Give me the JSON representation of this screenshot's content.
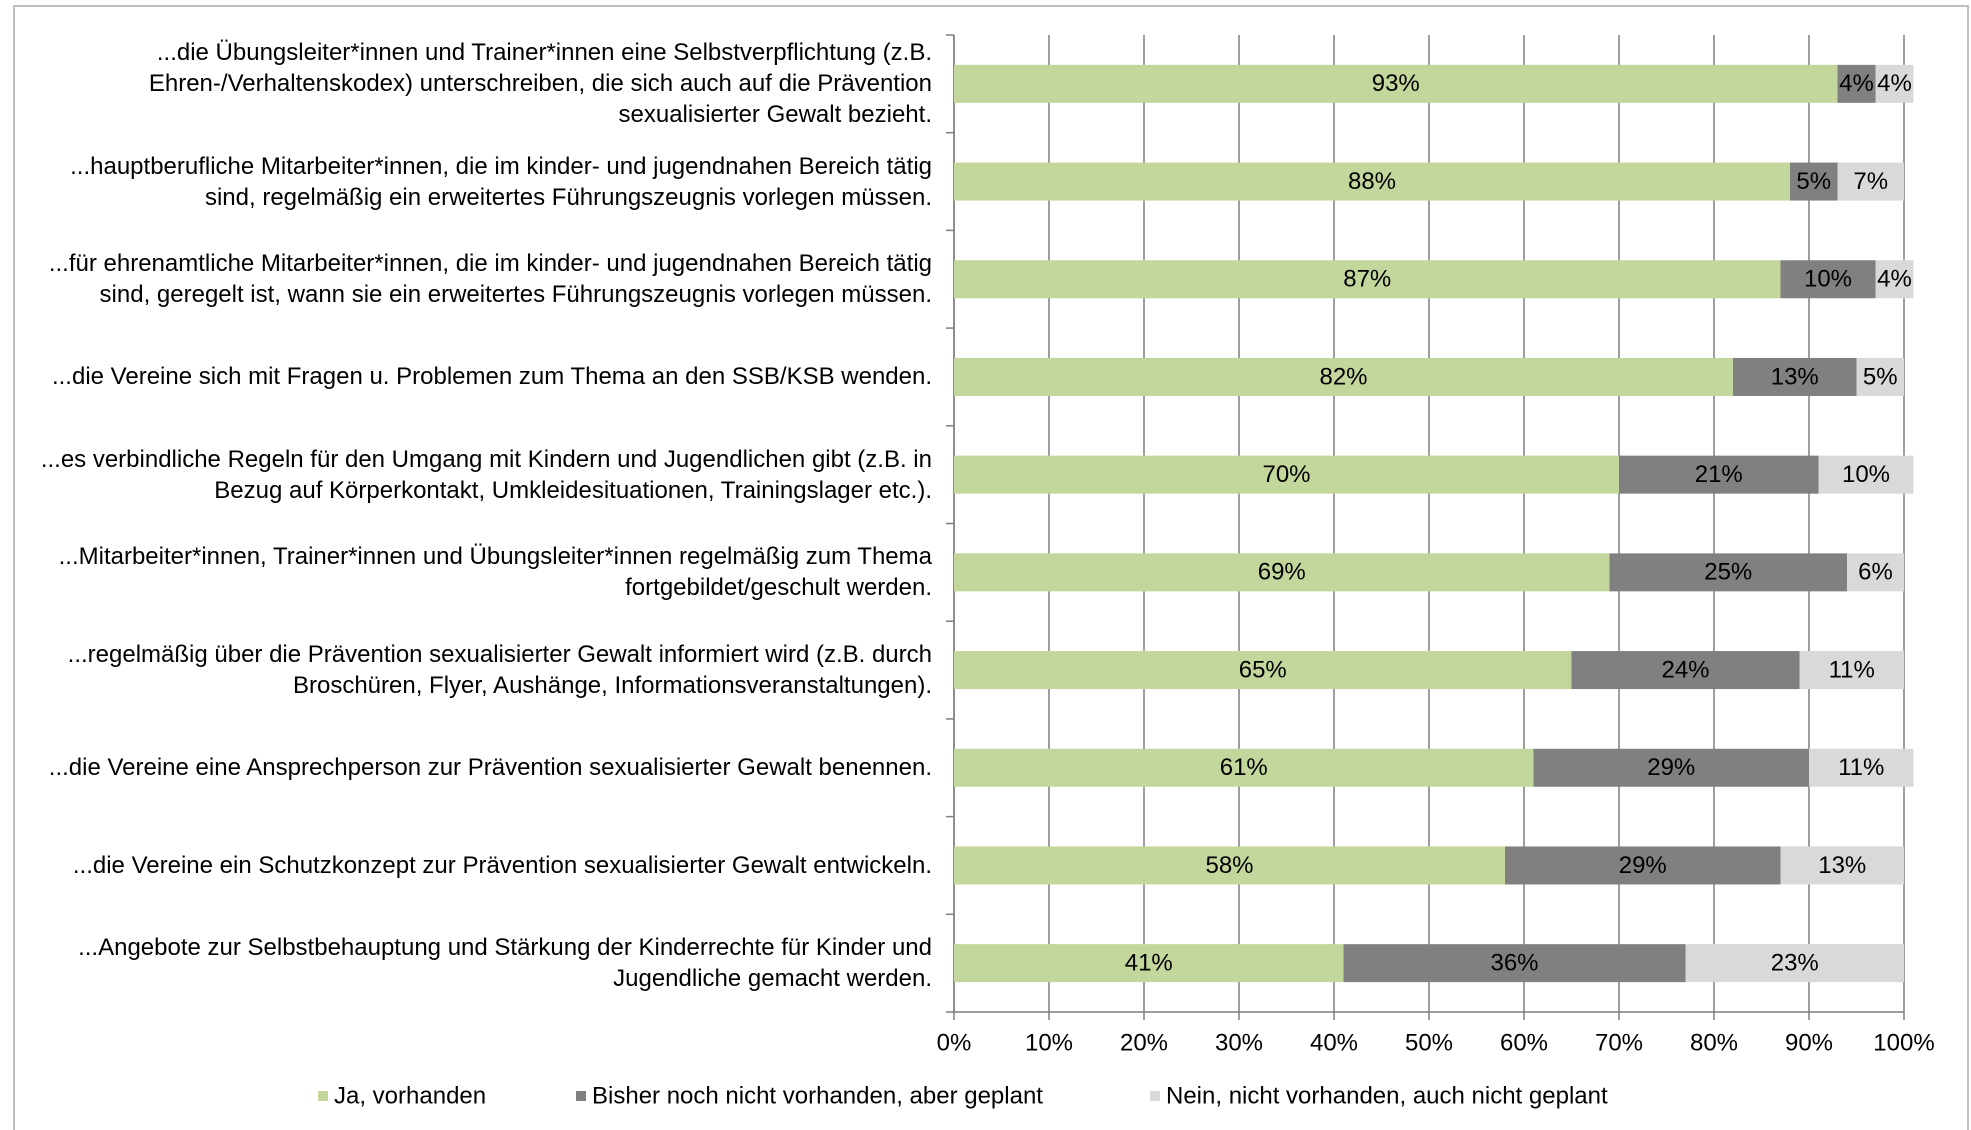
{
  "chart_data": {
    "type": "stacked_barh",
    "categories": [
      "...die Übungsleiter*innen und Trainer*innen eine Selbstverpflichtung (z.B. Ehren-/Verhaltenskodex) unterschreiben, die sich auch auf die Prävention sexualisierter Gewalt bezieht.",
      "...hauptberufliche Mitarbeiter*innen, die im kinder- und jugendnahen Bereich tätig sind, regelmäßig ein erweitertes Führungszeugnis vorlegen müssen.",
      "...für ehrenamtliche Mitarbeiter*innen, die im kinder- und jugendnahen Bereich tätig sind, geregelt ist, wann sie ein erweitertes Führungszeugnis vorlegen müssen.",
      "...die Vereine sich mit Fragen u. Problemen zum Thema an den SSB/KSB wenden.",
      "...es verbindliche Regeln für den Umgang mit Kindern und Jugendlichen gibt (z.B. in Bezug auf Körperkontakt, Umkleidesituationen, Trainingslager etc.).",
      "...Mitarbeiter*innen, Trainer*innen und Übungsleiter*innen regelmäßig zum Thema fortgebildet/geschult werden.",
      "...regelmäßig über die Prävention sexualisierter Gewalt informiert wird (z.B. durch Broschüren, Flyer, Aushänge, Informationsveranstaltungen).",
      "...die Vereine eine Ansprechperson zur Prävention sexualisierter Gewalt benennen.",
      "...die Vereine ein Schutzkonzept zur Prävention sexualisierter Gewalt entwickeln.",
      "...Angebote zur Selbstbehauptung und Stärkung der Kinderrechte für Kinder und Jugendliche gemacht werden."
    ],
    "series": [
      {
        "name": "Ja, vorhanden",
        "color": "#c3d69b",
        "values": [
          93,
          88,
          87,
          82,
          70,
          69,
          65,
          61,
          58,
          41
        ],
        "value_labels": [
          "93%",
          "88%",
          "87%",
          "82%",
          "70%",
          "69%",
          "65%",
          "61%",
          "58%",
          "41%"
        ]
      },
      {
        "name": "Bisher noch nicht vorhanden, aber geplant",
        "color": "#808080",
        "values": [
          4,
          5,
          10,
          13,
          21,
          25,
          24,
          29,
          29,
          36
        ],
        "value_labels": [
          "4%",
          "5%",
          "10%",
          "13%",
          "21%",
          "25%",
          "24%",
          "29%",
          "29%",
          "36%"
        ]
      },
      {
        "name": "Nein, nicht vorhanden, auch nicht geplant",
        "color": "#d9d9d9",
        "values": [
          4,
          7,
          4,
          5,
          10,
          6,
          11,
          11,
          13,
          23
        ],
        "value_labels": [
          "4%",
          "7%",
          "4%",
          "5%",
          "10%",
          "6%",
          "11%",
          "11%",
          "13%",
          "23%"
        ]
      }
    ],
    "xlim": [
      0,
      100
    ],
    "xticks": [
      {
        "value": 0,
        "label": "0%"
      },
      {
        "value": 10,
        "label": "10%"
      },
      {
        "value": 20,
        "label": "20%"
      },
      {
        "value": 30,
        "label": "30%"
      },
      {
        "value": 40,
        "label": "40%"
      },
      {
        "value": 50,
        "label": "50%"
      },
      {
        "value": 60,
        "label": "60%"
      },
      {
        "value": 70,
        "label": "70%"
      },
      {
        "value": 80,
        "label": "80%"
      },
      {
        "value": 90,
        "label": "90%"
      },
      {
        "value": 100,
        "label": "100%"
      }
    ],
    "grid": true,
    "legend": "bottom"
  }
}
